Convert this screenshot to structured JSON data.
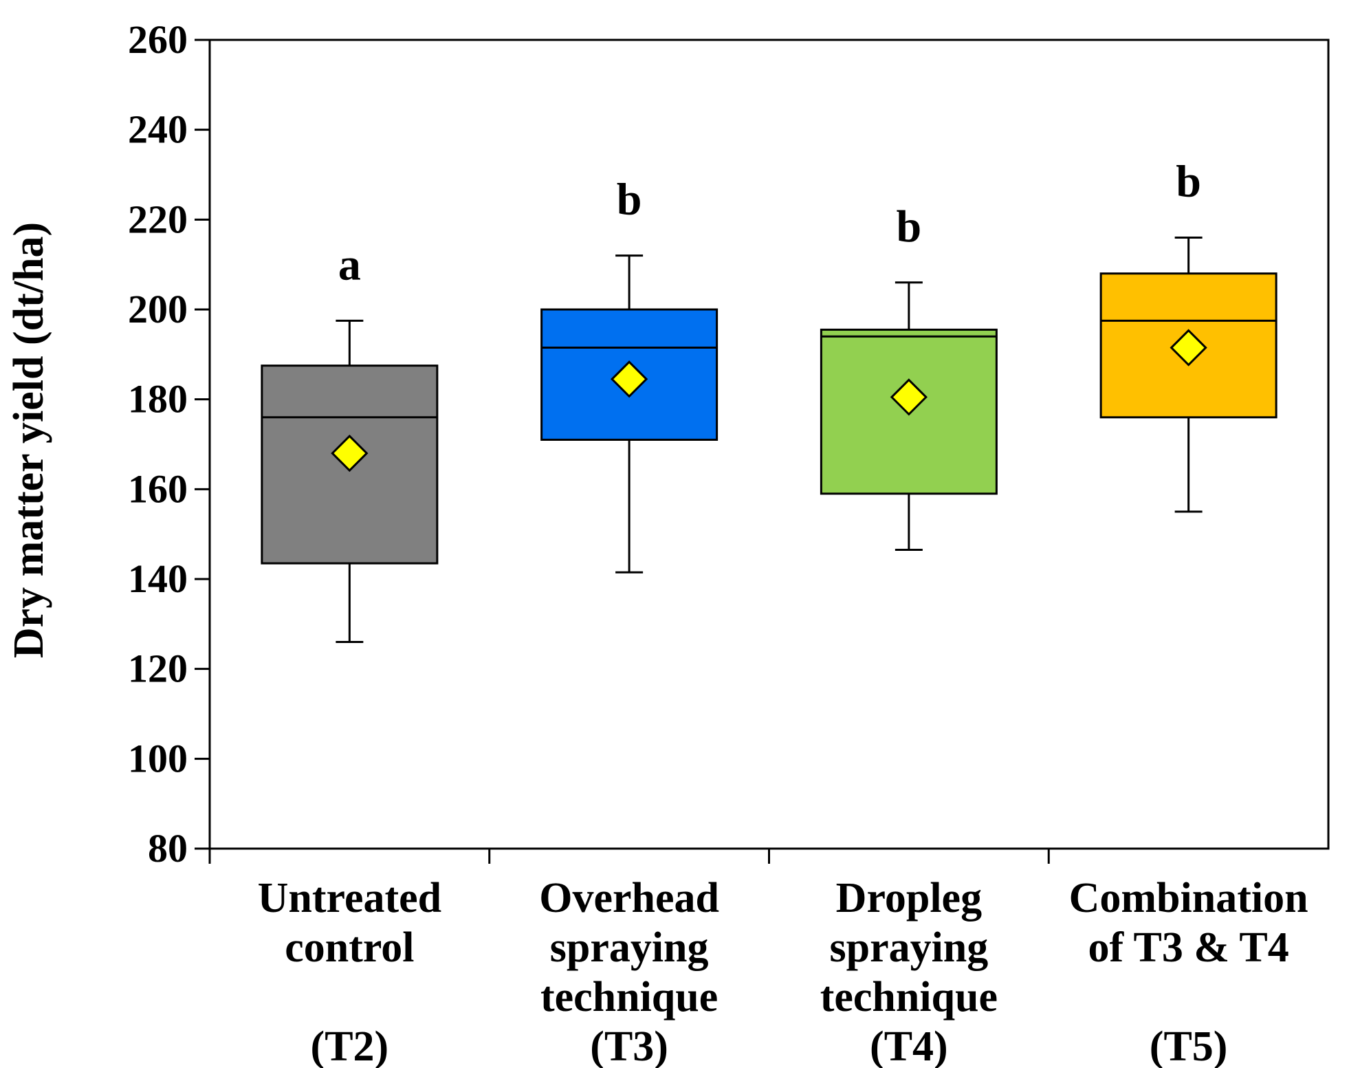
{
  "chart_data": {
    "type": "box",
    "title": "",
    "xlabel": "",
    "ylabel": "Dry matter yield (dt/ha)",
    "ylim": [
      80,
      260
    ],
    "yticks": [
      80,
      100,
      120,
      140,
      160,
      180,
      200,
      220,
      240,
      260
    ],
    "grid": false,
    "categories": [
      {
        "lines": [
          "Untreated",
          "control",
          "",
          "(T2)"
        ],
        "min": 126,
        "q1": 143.5,
        "median": 176,
        "q3": 187.5,
        "max": 197.5,
        "mean": 168,
        "color": "#808080",
        "significance": "a"
      },
      {
        "lines": [
          "Overhead",
          "spraying",
          "technique",
          "(T3)"
        ],
        "min": 141.5,
        "q1": 171,
        "median": 191.5,
        "q3": 200,
        "max": 212,
        "mean": 184.5,
        "color": "#0070F0",
        "significance": "b"
      },
      {
        "lines": [
          "Dropleg",
          "spraying",
          "technique",
          "(T4)"
        ],
        "min": 146.5,
        "q1": 159,
        "median": 194,
        "q3": 195.5,
        "max": 206,
        "mean": 180.5,
        "color": "#92D050",
        "significance": "b"
      },
      {
        "lines": [
          "Combination",
          "of T3 & T4",
          "",
          "(T5)"
        ],
        "min": 155,
        "q1": 176,
        "median": 197.5,
        "q3": 208,
        "max": 216,
        "mean": 191.5,
        "color": "#FFC000",
        "significance": "b"
      }
    ],
    "mean_marker": {
      "shape": "diamond",
      "color": "#FFFF00"
    }
  }
}
